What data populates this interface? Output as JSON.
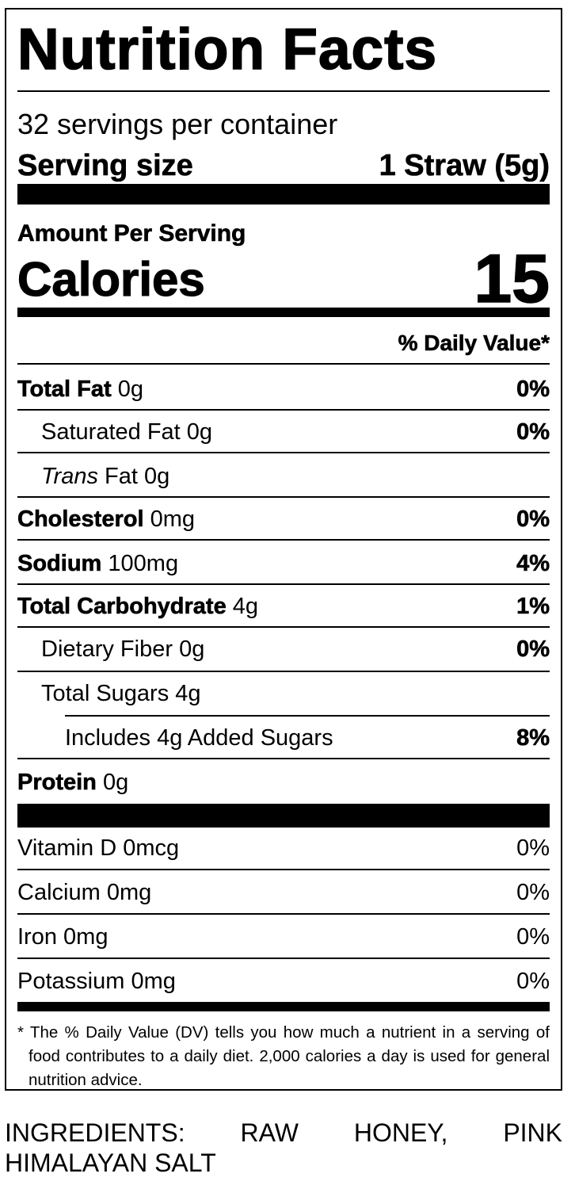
{
  "label": {
    "title": "Nutrition Facts",
    "servings_per_container": "32 servings per container",
    "serving_size_label": "Serving size",
    "serving_size_value": "1 Straw (5g)",
    "amount_per_serving": "Amount Per Serving",
    "calories_label": "Calories",
    "calories_value": "15",
    "daily_value_header": "% Daily Value*",
    "nutrients": [
      {
        "name": "Total Fat",
        "amount": "0g",
        "dv": "0%"
      },
      {
        "name": "Saturated Fat",
        "amount": "0g",
        "dv": "0%"
      },
      {
        "name": "Trans",
        "name_suffix": "Fat",
        "amount": "0g",
        "dv": ""
      },
      {
        "name": "Cholesterol",
        "amount": "0mg",
        "dv": "0%"
      },
      {
        "name": "Sodium",
        "amount": "100mg",
        "dv": "4%"
      },
      {
        "name": "Total Carbohydrate",
        "amount": "4g",
        "dv": "1%"
      },
      {
        "name": "Dietary Fiber",
        "amount": "0g",
        "dv": "0%"
      },
      {
        "name": "Total Sugars",
        "amount": "4g",
        "dv": ""
      },
      {
        "name": "Includes 4g Added Sugars",
        "amount": "",
        "dv": "8%"
      },
      {
        "name": "Protein",
        "amount": "0g",
        "dv": ""
      }
    ],
    "vitamins": [
      {
        "name": "Vitamin D",
        "amount": "0mcg",
        "dv": "0%"
      },
      {
        "name": "Calcium",
        "amount": "0mg",
        "dv": "0%"
      },
      {
        "name": "Iron",
        "amount": "0mg",
        "dv": "0%"
      },
      {
        "name": "Potassium",
        "amount": "0mg",
        "dv": "0%"
      }
    ],
    "footnote": "* The % Daily Value (DV) tells you how much a nutrient in a serving of food contributes to a daily diet. 2,000 calories a day is used for general nutrition advice."
  },
  "ingredients": {
    "line1": "INGREDIENTS: RAW HONEY, PINK",
    "line2": "HIMALAYAN SALT"
  }
}
